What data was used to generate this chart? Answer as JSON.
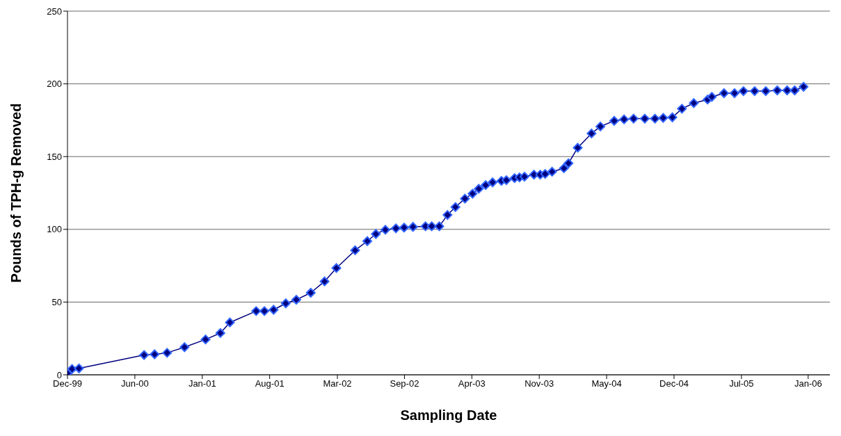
{
  "chart_data": {
    "type": "line",
    "xlabel": "Sampling Date",
    "ylabel": "Pounds of TPH-g Removed",
    "x": [
      "1999-12-01",
      "1999-12-15",
      "2000-01-05",
      "2000-07-21",
      "2000-08-22",
      "2000-09-29",
      "2000-11-21",
      "2001-01-24",
      "2001-03-10",
      "2001-04-08",
      "2001-06-27",
      "2001-07-22",
      "2001-08-19",
      "2001-09-25",
      "2001-10-27",
      "2001-12-10",
      "2002-01-21",
      "2002-02-26",
      "2002-04-24",
      "2002-05-31",
      "2002-06-26",
      "2002-07-25",
      "2002-08-26",
      "2002-09-20",
      "2002-10-17",
      "2002-11-24",
      "2002-12-13",
      "2003-01-05",
      "2003-01-30",
      "2003-02-23",
      "2003-03-24",
      "2003-04-16",
      "2003-05-05",
      "2003-05-26",
      "2003-06-16",
      "2003-07-13",
      "2003-07-28",
      "2003-08-22",
      "2003-09-06",
      "2003-09-21",
      "2003-10-20",
      "2003-11-08",
      "2003-11-23",
      "2003-12-14",
      "2004-01-19",
      "2004-02-02",
      "2004-03-01",
      "2004-04-12",
      "2004-05-09",
      "2004-06-20",
      "2004-07-20",
      "2004-08-18",
      "2004-09-21",
      "2004-10-22",
      "2004-11-16",
      "2004-12-14",
      "2005-01-12",
      "2005-02-17",
      "2005-03-31",
      "2005-04-13",
      "2005-05-20",
      "2005-06-21",
      "2005-07-18",
      "2005-08-21",
      "2005-09-24",
      "2005-10-29",
      "2005-11-28",
      "2005-12-21",
      "2006-01-17"
    ],
    "series": [
      {
        "color": "#000080",
        "values": [
          1,
          4,
          4.4,
          13.6,
          14.1,
          15.1,
          19,
          24.3,
          28.7,
          36,
          43.8,
          43.8,
          44.7,
          49.1,
          51.6,
          56.4,
          64.2,
          73.4,
          85.6,
          91.9,
          96.8,
          99.7,
          100.7,
          101.2,
          101.7,
          102.1,
          102.1,
          102.1,
          109.9,
          115.3,
          121.1,
          124.5,
          127.9,
          130.4,
          132.3,
          133.3,
          133.8,
          135.2,
          135.7,
          136.2,
          137.6,
          137.6,
          138.1,
          139.6,
          142,
          145.4,
          156.1,
          165.9,
          170.7,
          174.6,
          175.6,
          176.1,
          176.1,
          176.1,
          176.6,
          177,
          182.9,
          186.8,
          189.2,
          191.1,
          193.6,
          193.6,
          195,
          195,
          195,
          195.5,
          195.5,
          195.5,
          198
        ]
      }
    ],
    "xlim": [
      "1999-12-01",
      "2006-04-07"
    ],
    "xticks": [
      {
        "value": "1999-12-01",
        "label": "Dec-99"
      },
      {
        "value": "2000-06-23",
        "label": "Jun-00"
      },
      {
        "value": "2001-01-14",
        "label": "Jan-01"
      },
      {
        "value": "2001-08-07",
        "label": "Aug-01"
      },
      {
        "value": "2002-03-01",
        "label": "Mar-02"
      },
      {
        "value": "2002-09-21",
        "label": "Sep-02"
      },
      {
        "value": "2003-04-14",
        "label": "Apr-03"
      },
      {
        "value": "2003-11-05",
        "label": "Nov-03"
      },
      {
        "value": "2004-05-28",
        "label": "May-04"
      },
      {
        "value": "2004-12-19",
        "label": "Dec-04"
      },
      {
        "value": "2005-07-12",
        "label": "Jul-05"
      },
      {
        "value": "2006-01-31",
        "label": "Jan-06"
      }
    ],
    "ylim": [
      0,
      250
    ],
    "yticks": [
      0,
      50,
      100,
      150,
      200,
      250
    ],
    "grid": "y",
    "marker": "diamond",
    "line_style": "solid"
  }
}
